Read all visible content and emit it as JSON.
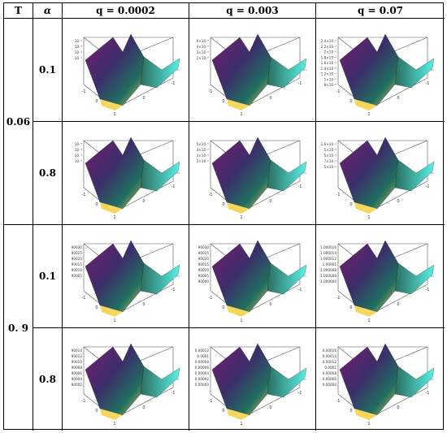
{
  "header": {
    "t": "T",
    "alpha": "α",
    "q1": "q = 0.0002",
    "q2": "q = 0.003",
    "q3": "q = 0.07"
  },
  "groups": [
    {
      "t": "0.06",
      "alphas": [
        "0.1",
        "0.8"
      ]
    },
    {
      "t": "0. 9",
      "alphas": [
        "0.1",
        "0.8"
      ]
    }
  ],
  "plots": [
    {
      "ticks": [
        "10⁻⁶",
        "10⁻⁶",
        "10⁻⁶",
        "10⁻⁶"
      ],
      "axis": [
        "-1",
        "0",
        "1",
        "0",
        "-1"
      ]
    },
    {
      "ticks": [
        "6×10⁻⁶",
        "4×10⁻⁶",
        "3×10⁻⁶",
        "2×10⁻⁶"
      ],
      "axis": [
        "-1",
        "0",
        "1",
        "0",
        "-1"
      ]
    },
    {
      "ticks": [
        "2.4×10⁻⁵",
        "2.2×10⁻⁵",
        "2×10⁻⁵",
        "1.8×10⁻⁵",
        "1.6×10⁻⁵",
        "1.4×10⁻⁵",
        "1.2×10⁻⁵",
        "1×10⁻⁵",
        "8×10⁻⁶"
      ],
      "axis": [
        "-1",
        "0",
        "1",
        "0",
        "-1"
      ]
    },
    {
      "ticks": [
        "10⁻⁶",
        "10⁻⁶",
        "10⁻⁶",
        "10⁻⁶"
      ],
      "axis": [
        "-1",
        "0",
        "1",
        "0",
        "-1"
      ]
    },
    {
      "ticks": [
        "5×10⁻⁶",
        "4×10⁻⁶",
        "3×10⁻⁶",
        "2×10⁻⁶"
      ],
      "axis": [
        "-1",
        "0",
        "1",
        "0",
        "-1"
      ]
    },
    {
      "ticks": [
        "1.6×10⁻⁵",
        "5×10⁻⁶",
        "5×10⁻⁶",
        "7×10⁻⁶",
        "5×10⁻⁶"
      ],
      "axis": [
        "-1",
        "0",
        "1",
        "0",
        "-1"
      ]
    },
    {
      "ticks": [
        "90030",
        "90025",
        "90020",
        "90015",
        "90010",
        "90005"
      ],
      "axis": [
        "-1",
        "0",
        "1",
        "0",
        "-1"
      ]
    },
    {
      "ticks": [
        "90030",
        "90025",
        "90020",
        "90015",
        "90010",
        "90005",
        "90000"
      ],
      "axis": [
        "-1",
        "0",
        "1",
        "0",
        "-1"
      ]
    },
    {
      "ticks": [
        "1.000016",
        "1.000014",
        "1.000012",
        "1.00001",
        "1.000008",
        "1.000006",
        "1.000004"
      ],
      "axis": [
        "-1",
        "0",
        "1",
        "0",
        "-1"
      ]
    },
    {
      "ticks": [
        "90014",
        "90012",
        "90010",
        "90008",
        "90006",
        "90004",
        "90002"
      ],
      "axis": [
        "-1",
        "0",
        "1",
        "0",
        "-1"
      ]
    },
    {
      "ticks": [
        "0.00012",
        "0.0001",
        "0.00008",
        "0.00006",
        "0.00004",
        "0.00002",
        "0.00000"
      ],
      "axis": [
        "-1",
        "0",
        "1",
        "0",
        "-1"
      ]
    },
    {
      "ticks": [
        "0.00016",
        "0.00014",
        "0.00012",
        "0.0001",
        "0.00008",
        "0.00006",
        "0.00004"
      ],
      "axis": [
        "-1",
        "0",
        "1",
        "0",
        "-1"
      ]
    }
  ]
}
